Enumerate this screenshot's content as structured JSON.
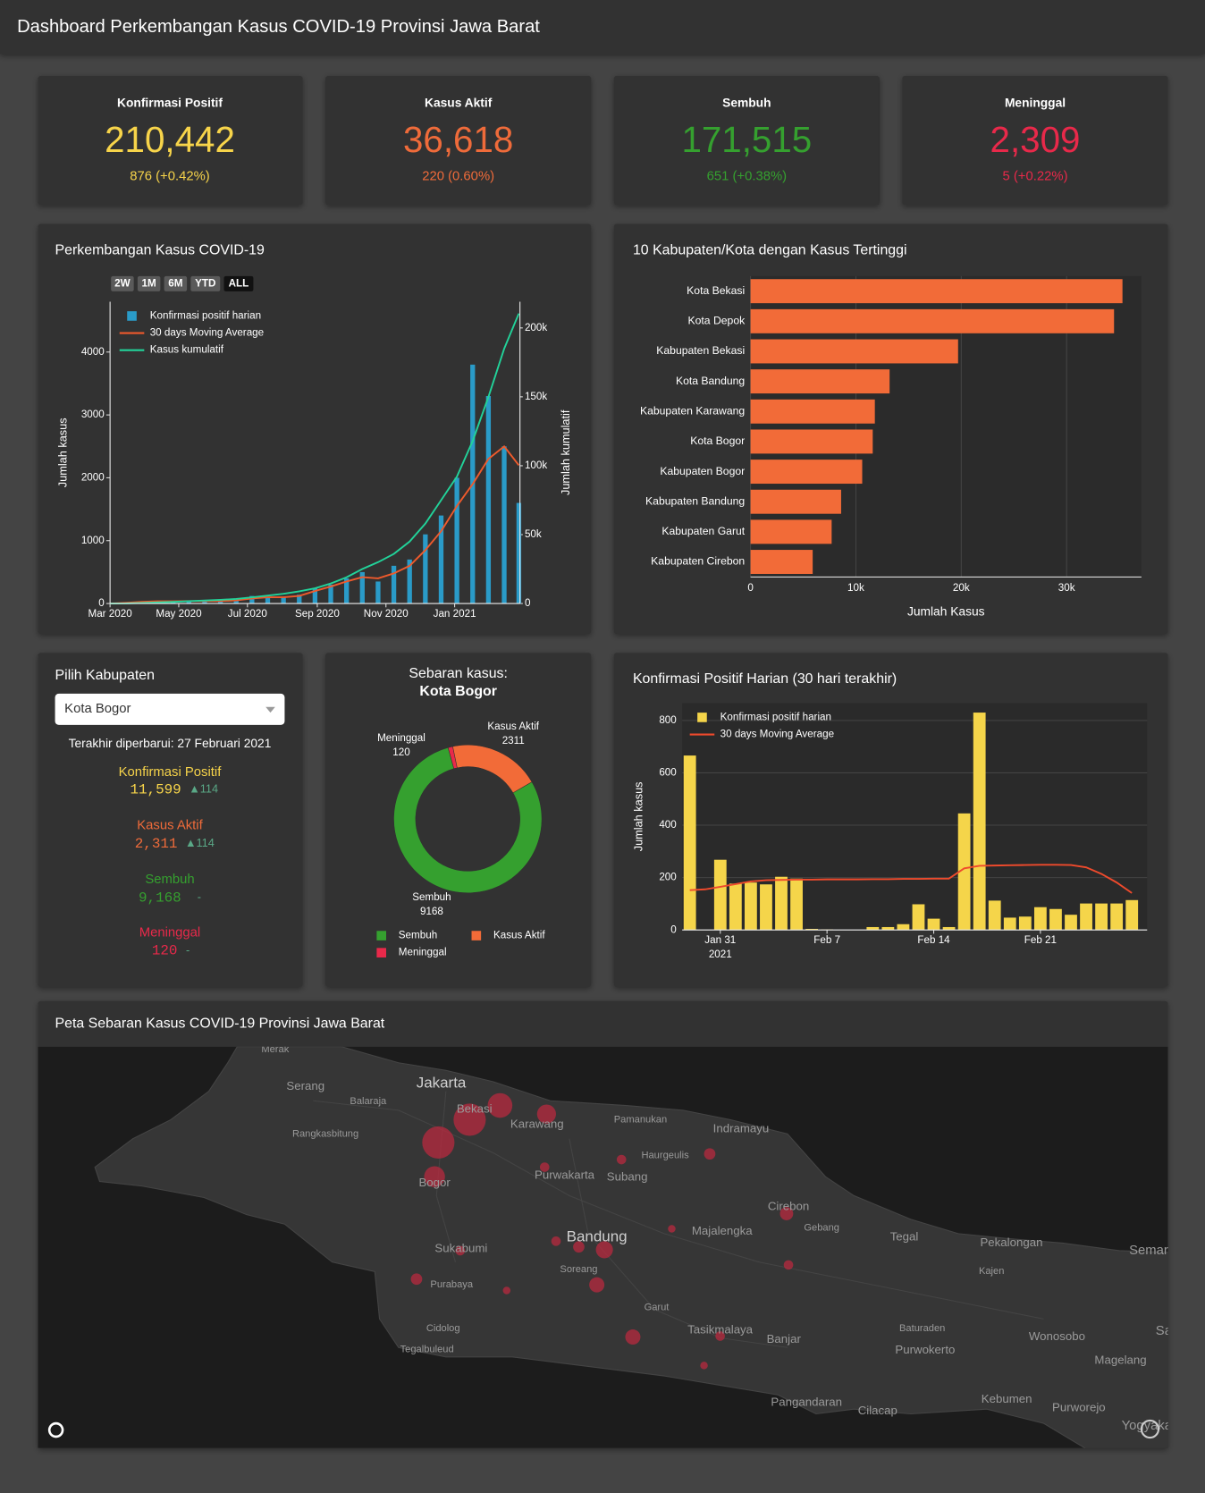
{
  "header": {
    "title": "Dashboard Perkembangan Kasus COVID-19 Provinsi Jawa Barat"
  },
  "cards": [
    {
      "label": "Konfirmasi Positif",
      "value": "210,442",
      "change": "876 (+0.42%)"
    },
    {
      "label": "Kasus Aktif",
      "value": "36,618",
      "change": "220 (0.60%)"
    },
    {
      "label": "Sembuh",
      "value": "171,515",
      "change": "651 (+0.38%)"
    },
    {
      "label": "Meninggal",
      "value": "2,309",
      "change": "5 (+0.22%)"
    }
  ],
  "chart_data": [
    {
      "type": "combo",
      "title": "Perkembangan Kasus COVID-19",
      "range_buttons": [
        "2W",
        "1M",
        "6M",
        "YTD",
        "ALL"
      ],
      "range_active": 4,
      "x": [
        "2020-03-01",
        "2020-03-15",
        "2020-03-29",
        "2020-04-12",
        "2020-04-26",
        "2020-05-10",
        "2020-05-24",
        "2020-06-07",
        "2020-06-21",
        "2020-07-05",
        "2020-07-19",
        "2020-08-02",
        "2020-08-16",
        "2020-08-30",
        "2020-09-13",
        "2020-09-27",
        "2020-10-11",
        "2020-10-25",
        "2020-11-08",
        "2020-11-22",
        "2020-12-06",
        "2020-12-20",
        "2021-01-03",
        "2021-01-17",
        "2021-01-31",
        "2021-02-14",
        "2021-02-27"
      ],
      "series": [
        {
          "name": "Konfirmasi positif harian",
          "type": "bar",
          "color": "#2a9bc8",
          "values": [
            0,
            20,
            30,
            40,
            30,
            50,
            30,
            40,
            60,
            120,
            90,
            100,
            140,
            250,
            300,
            400,
            500,
            350,
            600,
            700,
            1100,
            1400,
            2000,
            3800,
            3300,
            2500,
            1600
          ]
        },
        {
          "name": "30 days Moving Average",
          "type": "line",
          "color": "#ef5a2c",
          "values": [
            0,
            10,
            25,
            35,
            35,
            40,
            40,
            40,
            50,
            80,
            100,
            100,
            120,
            200,
            270,
            350,
            420,
            400,
            480,
            600,
            850,
            1150,
            1550,
            1900,
            2300,
            2500,
            2200
          ]
        },
        {
          "name": "Kasus kumulatif",
          "type": "line",
          "color": "#22d39a",
          "axis": "y2",
          "values": [
            0,
            50,
            400,
            800,
            1200,
            1700,
            2200,
            2700,
            3300,
            4500,
            5800,
            7000,
            8800,
            11000,
            14500,
            19000,
            25000,
            30000,
            36000,
            45000,
            58000,
            75000,
            92000,
            118000,
            150000,
            185000,
            210442
          ]
        }
      ],
      "ylabel": "Jumlah kasus",
      "y2label": "Jumlah kumulatif",
      "ylim": [
        0,
        4800
      ],
      "yticks": [
        0,
        1000,
        2000,
        3000,
        4000
      ],
      "y2lim": [
        0,
        219000
      ],
      "y2ticks": [
        0,
        {
          "value": 50000,
          "label": "50k"
        },
        {
          "value": 100000,
          "label": "100k"
        },
        {
          "value": 150000,
          "label": "150k"
        },
        {
          "value": 200000,
          "label": "200k"
        }
      ],
      "xlim": [
        "2020-03-01",
        "2021-02-28"
      ],
      "xticks": [
        {
          "value": "2020-03-01",
          "label": "Mar 2020"
        },
        {
          "value": "2020-05-01",
          "label": "May 2020"
        },
        {
          "value": "2020-07-01",
          "label": "Jul 2020"
        },
        {
          "value": "2020-09-01",
          "label": "Sep 2020"
        },
        {
          "value": "2020-11-01",
          "label": "Nov 2020"
        },
        {
          "value": "2021-01-01",
          "label": "Jan 2021"
        }
      ],
      "grid": false
    },
    {
      "type": "hbar",
      "title": "10 Kabupaten/Kota dengan Kasus Tertinggi",
      "categories": [
        "Kota Bekasi",
        "Kota Depok",
        "Kabupaten Bekasi",
        "Kota Bandung",
        "Kabupaten Karawang",
        "Kota Bogor",
        "Kabupaten Bogor",
        "Kabupaten Bandung",
        "Kabupaten Garut",
        "Kabupaten Cirebon"
      ],
      "values": [
        35300,
        34500,
        19700,
        13200,
        11800,
        11599,
        10600,
        8600,
        7700,
        5900
      ],
      "color": "#f26b38",
      "xlabel": "Jumlah Kasus",
      "xlim": [
        0,
        37100
      ],
      "xticks": [
        0,
        {
          "value": 10000,
          "label": "10k"
        },
        {
          "value": 20000,
          "label": "20k"
        },
        {
          "value": 30000,
          "label": "30k"
        }
      ],
      "grid": true
    },
    {
      "type": "pie",
      "title": "Sebaran kasus:",
      "subtitle": "Kota Bogor",
      "categories": [
        "Sembuh",
        "Meninggal",
        "Kasus Aktif"
      ],
      "values": [
        9168,
        120,
        2311
      ],
      "colors": [
        "#35a02f",
        "#e8294a",
        "#f26b38"
      ]
    },
    {
      "type": "combo",
      "title": "Konfirmasi Positif Harian (30 hari terakhir)",
      "x": [
        "2021-01-29",
        "2021-01-30",
        "2021-01-31",
        "2021-02-01",
        "2021-02-02",
        "2021-02-03",
        "2021-02-04",
        "2021-02-05",
        "2021-02-06",
        "2021-02-07",
        "2021-02-08",
        "2021-02-09",
        "2021-02-10",
        "2021-02-11",
        "2021-02-12",
        "2021-02-13",
        "2021-02-14",
        "2021-02-15",
        "2021-02-16",
        "2021-02-17",
        "2021-02-18",
        "2021-02-19",
        "2021-02-20",
        "2021-02-21",
        "2021-02-22",
        "2021-02-23",
        "2021-02-24",
        "2021-02-25",
        "2021-02-26",
        "2021-02-27"
      ],
      "series": [
        {
          "name": "Konfirmasi positif harian",
          "type": "bar",
          "color": "#f5d54a",
          "values": [
            666,
            0,
            268,
            177,
            181,
            174,
            203,
            196,
            4,
            2,
            0,
            0,
            11,
            11,
            22,
            98,
            43,
            11,
            445,
            830,
            112,
            47,
            51,
            87,
            80,
            58,
            101,
            101,
            101,
            114
          ]
        },
        {
          "name": "30 days Moving Average",
          "type": "line",
          "color": "#ef4a2c",
          "values": [
            152,
            155,
            165,
            175,
            185,
            190,
            191,
            192,
            192,
            193,
            193,
            193,
            194,
            194,
            195,
            195,
            196,
            196,
            235,
            245,
            246,
            247,
            248,
            249,
            249,
            248,
            239,
            214,
            181,
            141
          ]
        }
      ],
      "ylabel": "Jumlah kasus",
      "ylim": [
        0,
        866
      ],
      "yticks": [
        0,
        200,
        400,
        600,
        800
      ],
      "xlim": [
        "2021-01-28T12:00:00",
        "2021-02-28T00:00:00"
      ],
      "xticks": [
        {
          "value": "2021-01-31",
          "label": "Jan 31"
        },
        {
          "value": "2021-02-07",
          "label": "Feb 7"
        },
        {
          "value": "2021-02-14",
          "label": "Feb 14"
        },
        {
          "value": "2021-02-21",
          "label": "Feb 21"
        }
      ],
      "x_year_label": "2021",
      "grid": true
    }
  ],
  "selector": {
    "title": "Pilih Kabupaten",
    "selected": "Kota Bogor",
    "updated": "Terakhir diperbarui: 27 Februari 2021",
    "stats": [
      {
        "label": "Konfirmasi Positif",
        "value": "11,599",
        "change": "▲114"
      },
      {
        "label": "Kasus Aktif",
        "value": "2,311",
        "change": "▲114"
      },
      {
        "label": "Sembuh",
        "value": "9,168",
        "change": "-"
      },
      {
        "label": "Meninggal",
        "value": "120",
        "change": "-"
      }
    ]
  },
  "map": {
    "title": "Peta Sebaran Kasus COVID-19 Provinsi Jawa Barat",
    "places": [
      "Merak",
      "Serang",
      "Jakarta",
      "Balaraja",
      "Bekasi",
      "Karawang",
      "Pamanukan",
      "Indramayu",
      "Rangkasbitung",
      "Haurgeulis",
      "Purwakarta",
      "Subang",
      "Bogor",
      "Cirebon",
      "Gebang",
      "Majalengka",
      "Bandung",
      "Tegal",
      "Pekalongan",
      "Semarang",
      "Sukabumi",
      "Soreang",
      "Kajen",
      "Purabaya",
      "Garut",
      "Cidolog",
      "Tasikmalaya",
      "Banjar",
      "Baturaden",
      "Wonosobo",
      "Tegalbuleud",
      "Purwokerto",
      "Magelang",
      "Pangandaran",
      "Cilacap",
      "Kebumen",
      "Purworejo",
      "Yogyakarta",
      "Salatiga"
    ]
  }
}
